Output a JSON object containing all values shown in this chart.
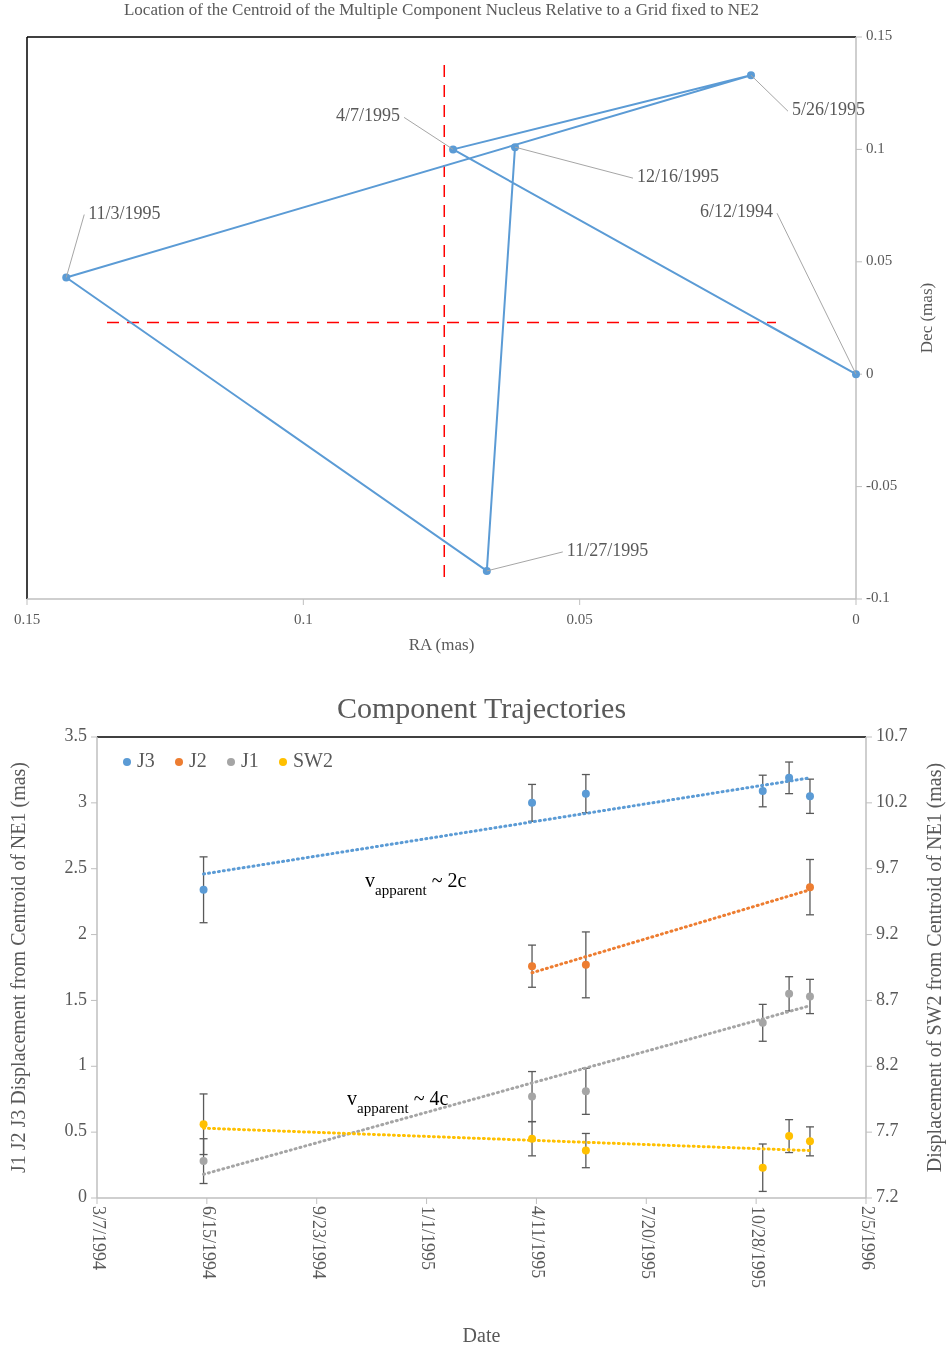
{
  "chart_data": [
    {
      "type": "line",
      "title": "Location of the Centroid of the Multiple Component Nucleus Relative to a Grid fixed to NE2",
      "xlabel": "RA (mas)",
      "ylabel": "Dec (mas)",
      "xlim": [
        0.15,
        0
      ],
      "xticks": [
        0.15,
        0.1,
        0.05,
        0
      ],
      "ylim": [
        -0.1,
        0.15
      ],
      "yticks": [
        -0.1,
        -0.05,
        0,
        0.05,
        0.1,
        0.15
      ],
      "grid": false,
      "legend": false,
      "marker": "circle",
      "line_style": "solid",
      "series": [
        {
          "color": "#5b9bd5",
          "x": [
            0,
            0.0729,
            0.019,
            0.1429,
            0.0668,
            0.0617
          ],
          "values": [
            0,
            0.1,
            0.133,
            0.043,
            -0.0875,
            0.101
          ]
        }
      ],
      "ref_lines": [
        {
          "axis": "x",
          "value": 0.0745,
          "color": "#ff0000",
          "line_style": "dashed"
        },
        {
          "axis": "y",
          "value": 0.023,
          "color": "#ff0000",
          "line_style": "dashed"
        }
      ],
      "annotations": [
        {
          "text": "6/12/1994",
          "x": 0,
          "y": 0
        },
        {
          "text": "4/7/1995",
          "x": 0.0729,
          "y": 0.1
        },
        {
          "text": "5/26/1995",
          "x": 0.019,
          "y": 0.133
        },
        {
          "text": "11/3/1995",
          "x": 0.1429,
          "y": 0.043
        },
        {
          "text": "11/27/1995",
          "x": 0.0668,
          "y": -0.0875
        },
        {
          "text": "12/16/1995",
          "x": 0.0617,
          "y": 0.101
        }
      ]
    },
    {
      "type": "scatter",
      "title": "Component Trajectories",
      "xlabel": "Date",
      "ylabel": "J1 J2 J3 Displacement from Centroid of NE1 (mas)",
      "y2label": "Displacement of SW2 from Centroid of NE1  (mas)",
      "xlim": [
        "1994-03-07",
        "1996-02-05"
      ],
      "xticks": [
        {
          "value": "1994-03-07",
          "label": "3/7/1994"
        },
        {
          "value": "1994-06-15",
          "label": "6/15/1994"
        },
        {
          "value": "1994-09-23",
          "label": "9/23/1994"
        },
        {
          "value": "1995-01-01",
          "label": "1/1/1995"
        },
        {
          "value": "1995-04-11",
          "label": "4/11/1995"
        },
        {
          "value": "1995-07-20",
          "label": "7/20/1995"
        },
        {
          "value": "1995-10-28",
          "label": "10/28/1995"
        },
        {
          "value": "1996-02-05",
          "label": "2/5/1996"
        }
      ],
      "ylim": [
        0,
        3.5
      ],
      "yticks": [
        0,
        0.5,
        1,
        1.5,
        2,
        2.5,
        3,
        3.5
      ],
      "y2lim": [
        7.2,
        10.7
      ],
      "y2ticks": [
        7.2,
        7.7,
        8.2,
        8.7,
        9.2,
        9.7,
        10.2,
        10.7
      ],
      "grid": false,
      "legend": "top left",
      "marker": "circle",
      "series": [
        {
          "name": "J3",
          "color": "#5b9bd5",
          "x": [
            "1994-06-12",
            "1995-04-07",
            "1995-05-26",
            "1995-11-03",
            "1995-11-27",
            "1995-12-16"
          ],
          "values": [
            2.34,
            3.0,
            3.07,
            3.09,
            3.19,
            3.05
          ],
          "errors": [
            0.25,
            0.14,
            0.145,
            0.12,
            0.12,
            0.13
          ]
        },
        {
          "name": "J2",
          "color": "#ed7d31",
          "x": [
            "1995-04-07",
            "1995-05-26",
            "1995-12-16"
          ],
          "values": [
            1.76,
            1.77,
            2.36
          ],
          "errors": [
            0.16,
            0.25,
            0.21
          ]
        },
        {
          "name": "J1",
          "color": "#a5a5a5",
          "x": [
            "1994-06-12",
            "1995-04-07",
            "1995-05-26",
            "1995-11-03",
            "1995-11-27",
            "1995-12-16"
          ],
          "values": [
            0.28,
            0.77,
            0.81,
            1.33,
            1.55,
            1.53
          ],
          "errors": [
            0.17,
            0.19,
            0.175,
            0.14,
            0.13,
            0.13
          ]
        },
        {
          "name": "SW2",
          "color": "#ffc000",
          "axis": "y2",
          "x": [
            "1994-06-12",
            "1995-04-07",
            "1995-05-26",
            "1995-11-03",
            "1995-11-27",
            "1995-12-16"
          ],
          "values": [
            7.76,
            7.65,
            7.56,
            7.43,
            7.67,
            7.63
          ],
          "errors": [
            0.23,
            0.13,
            0.13,
            0.18,
            0.125,
            0.11
          ]
        },
        {
          "type": "line",
          "color": "#5b9bd5",
          "marker": "none",
          "line_style": "dotted",
          "x": [
            "1994-06-12",
            "1995-12-16"
          ],
          "values": [
            2.46,
            3.19
          ]
        },
        {
          "type": "line",
          "color": "#ed7d31",
          "marker": "none",
          "line_style": "dotted",
          "x": [
            "1995-04-07",
            "1995-12-16"
          ],
          "values": [
            1.71,
            2.34
          ]
        },
        {
          "type": "line",
          "color": "#a5a5a5",
          "marker": "none",
          "line_style": "dotted",
          "x": [
            "1994-06-12",
            "1995-12-16"
          ],
          "values": [
            0.18,
            1.46
          ]
        },
        {
          "type": "line",
          "color": "#ffc000",
          "axis": "y2",
          "marker": "none",
          "line_style": "dotted",
          "x": [
            "1994-06-12",
            "1995-12-16"
          ],
          "values": [
            7.73,
            7.56
          ]
        }
      ],
      "annotations": [
        "v$_{apparent}$ ~ 2c",
        "v$_{apparent}$ ~ 4c"
      ]
    }
  ]
}
